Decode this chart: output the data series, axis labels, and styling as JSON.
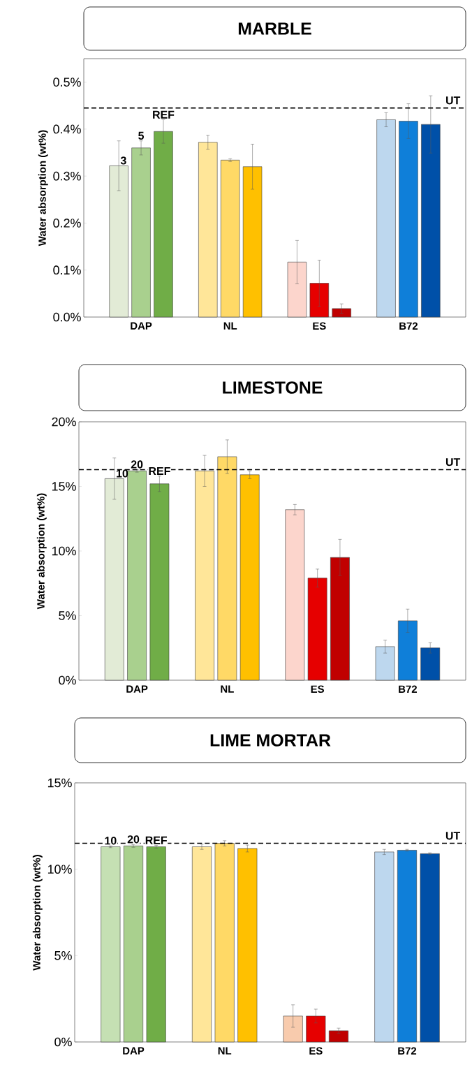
{
  "chart_data": [
    {
      "type": "bar",
      "title": "MARBLE",
      "ylabel": "Water absorption (wt%)",
      "categories": [
        "DAP",
        "NL",
        "ES",
        "B72"
      ],
      "series": [
        {
          "name": "3",
          "colors": [
            "#e2ebd6",
            "#ffe699",
            "#fcd5cc",
            "#bdd7ee"
          ],
          "values": [
            0.322,
            0.372,
            0.117,
            0.42
          ],
          "errors": [
            0.053,
            0.015,
            0.046,
            0.015
          ]
        },
        {
          "name": "5",
          "colors": [
            "#a9d08e",
            "#ffd966",
            "#e60000",
            "#0f7fd9"
          ],
          "values": [
            0.36,
            0.334,
            0.072,
            0.417
          ],
          "errors": [
            0.015,
            0.003,
            0.049,
            0.037
          ]
        },
        {
          "name": "REF",
          "colors": [
            "#70ad47",
            "#ffc000",
            "#c00000",
            "#0050a8"
          ],
          "values": [
            0.395,
            0.32,
            0.018,
            0.41
          ],
          "errors": [
            0.025,
            0.048,
            0.01,
            0.061
          ]
        }
      ],
      "ylim": [
        0,
        0.55
      ],
      "yticks": [
        {
          "value": 0,
          "label": "0.0%"
        },
        {
          "value": 0.1,
          "label": "0.1%"
        },
        {
          "value": 0.2,
          "label": "0.2%"
        },
        {
          "value": 0.3,
          "label": "0.3%"
        },
        {
          "value": 0.4,
          "label": "0.4%"
        },
        {
          "value": 0.5,
          "label": "0.5%"
        }
      ],
      "ref_lines": [
        {
          "axis": "y",
          "value": 0.445,
          "label": "UT",
          "color": "#000000",
          "line_style": "dashed"
        }
      ]
    },
    {
      "type": "bar",
      "title": "LIMESTONE",
      "ylabel": "Water absorption (wt%)",
      "categories": [
        "DAP",
        "NL",
        "ES",
        "B72"
      ],
      "series": [
        {
          "name": "10",
          "colors": [
            "#e2ebd6",
            "#ffe699",
            "#fcd5cc",
            "#bdd7ee"
          ],
          "values": [
            15.6,
            16.2,
            13.2,
            2.6
          ],
          "errors": [
            1.6,
            1.2,
            0.4,
            0.5
          ]
        },
        {
          "name": "20",
          "colors": [
            "#a9d08e",
            "#ffd966",
            "#e60000",
            "#0f7fd9"
          ],
          "values": [
            16.2,
            17.3,
            7.9,
            4.6
          ],
          "errors": [
            0.1,
            1.3,
            0.7,
            0.9
          ]
        },
        {
          "name": "REF",
          "colors": [
            "#70ad47",
            "#ffc000",
            "#c00000",
            "#0050a8"
          ],
          "values": [
            15.2,
            15.9,
            9.5,
            2.5
          ],
          "errors": [
            0.6,
            0.3,
            1.4,
            0.4
          ]
        }
      ],
      "ylim": [
        0,
        20
      ],
      "yticks": [
        {
          "value": 0,
          "label": "0%"
        },
        {
          "value": 5,
          "label": "5%"
        },
        {
          "value": 10,
          "label": "10%"
        },
        {
          "value": 15,
          "label": "15%"
        },
        {
          "value": 20,
          "label": "20%"
        }
      ],
      "ref_lines": [
        {
          "axis": "y",
          "value": 16.3,
          "label": "UT",
          "color": "#000000",
          "line_style": "dashed"
        }
      ]
    },
    {
      "type": "bar",
      "title": "LIME MORTAR",
      "ylabel": "Water absorption (wt%)",
      "categories": [
        "DAP",
        "NL",
        "ES",
        "B72"
      ],
      "series": [
        {
          "name": "10",
          "colors": [
            "#c5e0b3",
            "#ffe699",
            "#f8cbad",
            "#bdd7ee"
          ],
          "values": [
            11.3,
            11.3,
            1.5,
            11.0
          ],
          "errors": [
            0.05,
            0.15,
            0.65,
            0.15
          ]
        },
        {
          "name": "20",
          "colors": [
            "#a9d08e",
            "#ffd966",
            "#e60000",
            "#0f7fd9"
          ],
          "values": [
            11.35,
            11.5,
            1.5,
            11.1
          ],
          "errors": [
            0.08,
            0.15,
            0.4,
            0.05
          ]
        },
        {
          "name": "REF",
          "colors": [
            "#70ad47",
            "#ffc000",
            "#c00000",
            "#0050a8"
          ],
          "values": [
            11.3,
            11.2,
            0.65,
            10.9
          ],
          "errors": [
            0.08,
            0.2,
            0.15,
            0.05
          ]
        }
      ],
      "ylim": [
        0,
        15
      ],
      "yticks": [
        {
          "value": 0,
          "label": "0%"
        },
        {
          "value": 5,
          "label": "5%"
        },
        {
          "value": 10,
          "label": "10%"
        },
        {
          "value": 15,
          "label": "15%"
        }
      ],
      "ref_lines": [
        {
          "axis": "y",
          "value": 11.5,
          "label": "UT",
          "color": "#000000",
          "line_style": "dashed"
        }
      ]
    }
  ]
}
